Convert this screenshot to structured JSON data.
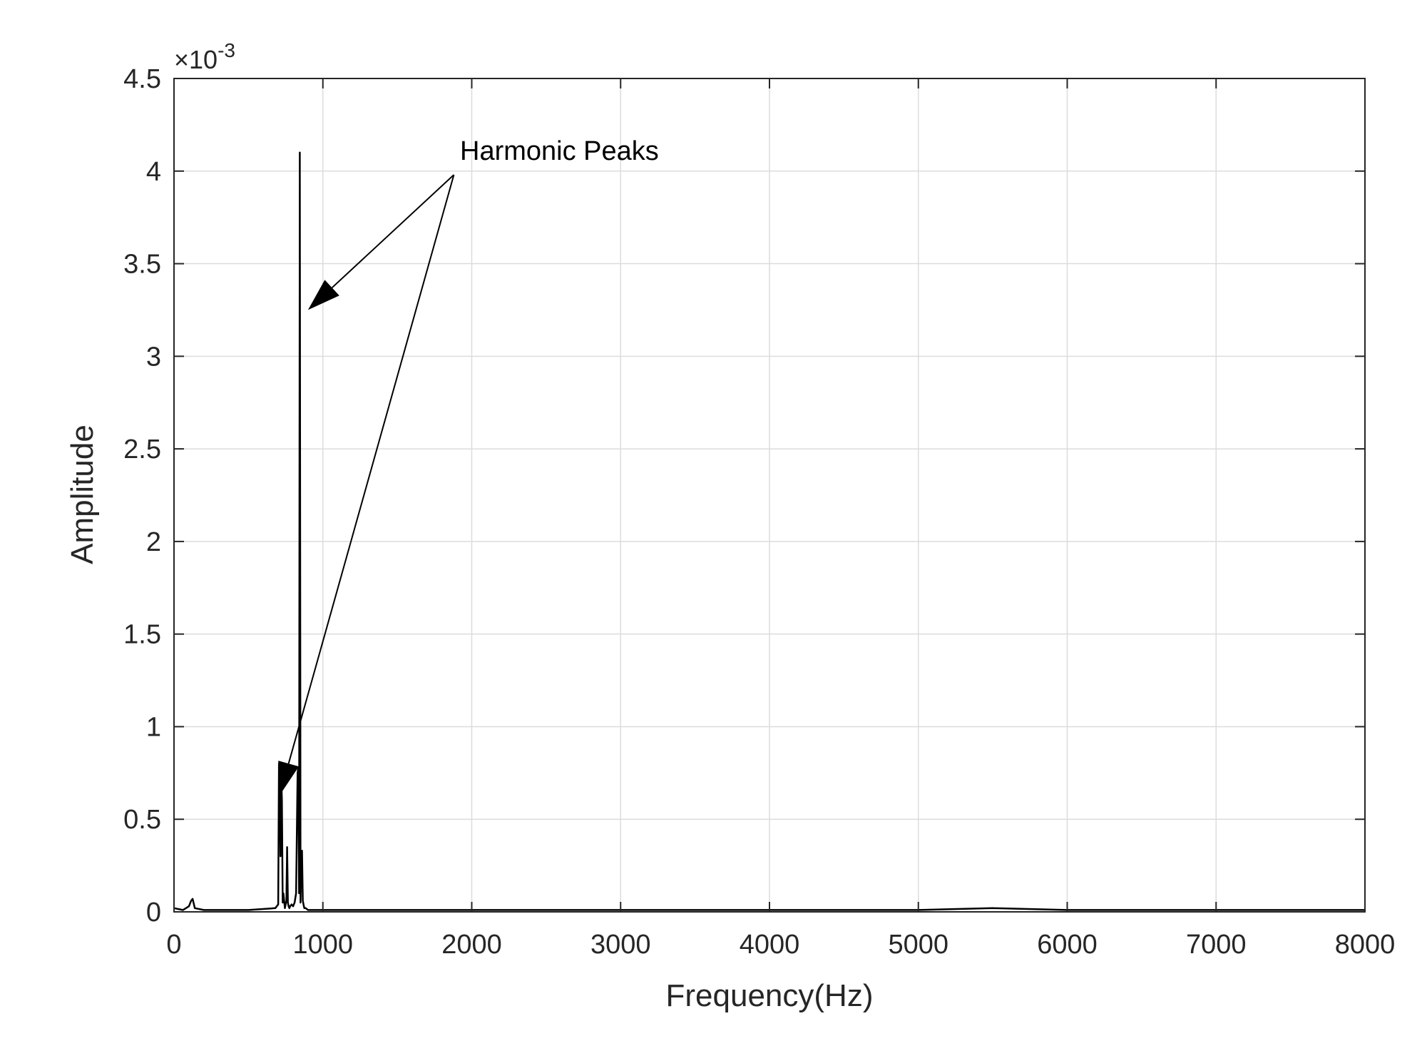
{
  "chart_data": {
    "type": "line",
    "title": "",
    "xlabel": "Frequency(Hz)",
    "ylabel": "Amplitude",
    "xlim": [
      0,
      8000
    ],
    "ylim": [
      0,
      0.0045
    ],
    "x_ticks": [
      "0",
      "1000",
      "2000",
      "3000",
      "4000",
      "5000",
      "6000",
      "7000",
      "8000"
    ],
    "x_tick_values": [
      0,
      1000,
      2000,
      3000,
      4000,
      5000,
      6000,
      7000,
      8000
    ],
    "y_ticks": [
      "0",
      "0.5",
      "1",
      "1.5",
      "2",
      "2.5",
      "3",
      "3.5",
      "4",
      "4.5"
    ],
    "y_tick_values": [
      0,
      0.0005,
      0.001,
      0.0015,
      0.002,
      0.0025,
      0.003,
      0.0035,
      0.004,
      0.0045
    ],
    "y_exponent_prefix": "×10",
    "y_exponent_power": "-3",
    "grid": true,
    "legend": "none",
    "line_color": "#000000",
    "series": [
      {
        "x": [
          0,
          60,
          100,
          115,
          125,
          140,
          200,
          300,
          500,
          680,
          700,
          705,
          710,
          715,
          720,
          725,
          730,
          735,
          745,
          755,
          760,
          765,
          770,
          775,
          780,
          790,
          800,
          810,
          820,
          830,
          835,
          840,
          845,
          850,
          855,
          860,
          865,
          870,
          875,
          885,
          900,
          1000,
          1500,
          2000,
          3000,
          4000,
          5000,
          5500,
          6000,
          7000,
          8000
        ],
        "y": [
          2e-05,
          1e-05,
          3e-05,
          6e-05,
          7e-05,
          2e-05,
          1e-05,
          1e-05,
          1e-05,
          2e-05,
          4e-05,
          0.0008,
          0.00078,
          0.0003,
          0.00075,
          0.0006,
          5e-05,
          0.0001,
          2e-05,
          6e-05,
          0.00035,
          5e-05,
          3e-05,
          2e-05,
          3e-05,
          4e-05,
          3e-05,
          5e-05,
          0.0001,
          0.00075,
          0.00078,
          0.0001,
          0.0041,
          5e-05,
          0.0003,
          0.00033,
          6e-05,
          4e-05,
          2e-05,
          2e-05,
          1e-05,
          1e-05,
          1e-05,
          1e-05,
          1e-05,
          1e-05,
          1e-05,
          2e-05,
          1e-05,
          1e-05,
          1e-05
        ]
      }
    ],
    "annotation": {
      "text": "Harmonic Peaks",
      "origin": [
        1880,
        0.00398
      ],
      "arrow_targets": [
        [
          900,
          0.00325
        ],
        [
          710,
          0.00063
        ]
      ]
    }
  }
}
